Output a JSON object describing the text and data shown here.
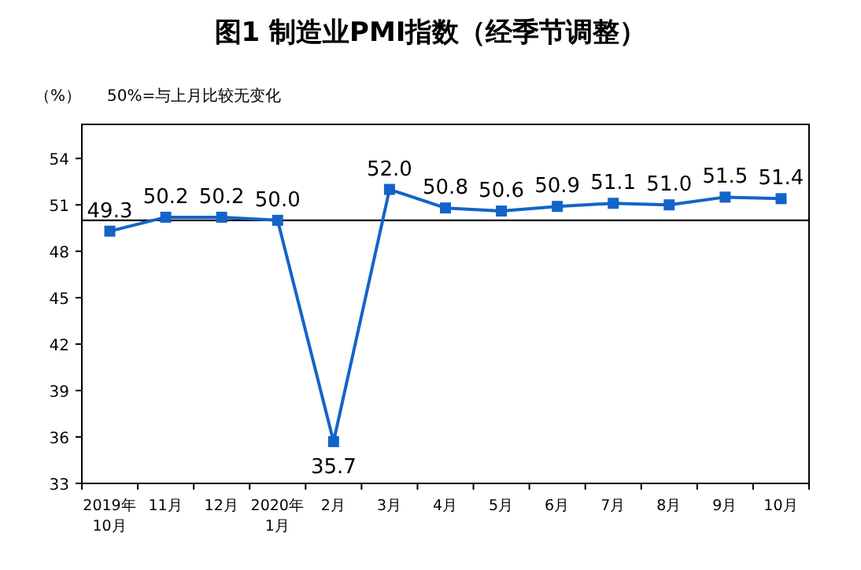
{
  "chart_data": {
    "type": "line",
    "title": "图1 制造业PMI指数（经季节调整）",
    "ylabel": "（%）",
    "annotations": [
      "50%=与上月比较无变化"
    ],
    "categories": [
      "2019年10月",
      "11月",
      "12月",
      "2020年1月",
      "2月",
      "3月",
      "4月",
      "5月",
      "6月",
      "7月",
      "8月",
      "9月",
      "10月"
    ],
    "series": [
      {
        "color": "#1464c8",
        "values": [
          49.3,
          50.2,
          50.2,
          50.0,
          35.7,
          52.0,
          50.8,
          50.6,
          50.9,
          51.1,
          51.0,
          51.5,
          51.4
        ],
        "value_labels": [
          "49.3",
          "50.2",
          "50.2",
          "50.0",
          "35.7",
          "52.0",
          "50.8",
          "50.6",
          "50.9",
          "51.1",
          "51.0",
          "51.5",
          "51.4"
        ]
      }
    ],
    "ylim": [
      33,
      56.2
    ],
    "yticks": [
      33,
      36,
      39,
      42,
      45,
      48,
      51,
      54
    ],
    "ref_lines": [
      {
        "axis": "y",
        "value": 50,
        "color": "#000000"
      }
    ],
    "marker": "square"
  }
}
